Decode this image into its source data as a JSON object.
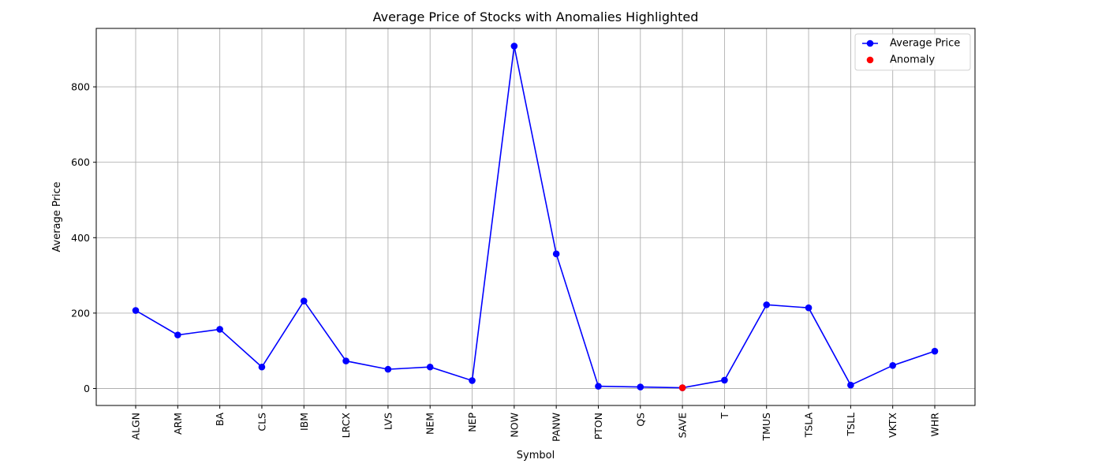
{
  "chart_data": {
    "type": "line",
    "title": "Average Price of Stocks with Anomalies Highlighted",
    "xlabel": "Symbol",
    "ylabel": "Average Price",
    "ylim": [
      -45,
      955
    ],
    "yticks": [
      0,
      200,
      400,
      600,
      800
    ],
    "grid": true,
    "legend_placement": "top-right",
    "categories": [
      "ALGN",
      "ARM",
      "BA",
      "CLS",
      "IBM",
      "LRCX",
      "LVS",
      "NEM",
      "NEP",
      "NOW",
      "PANW",
      "PTON",
      "QS",
      "SAVE",
      "T",
      "TMUS",
      "TSLA",
      "TSLL",
      "VKTX",
      "WHR"
    ],
    "series": [
      {
        "name": "Average Price",
        "color": "#0000ff",
        "values": [
          207,
          142,
          157,
          57,
          232,
          73,
          51,
          57,
          21,
          908,
          357,
          6,
          4,
          2,
          22,
          222,
          214,
          9,
          61,
          99
        ]
      }
    ],
    "anomalies": {
      "name": "Anomaly",
      "color": "#ff0000",
      "points": [
        {
          "category": "SAVE",
          "value": 2
        }
      ]
    }
  }
}
